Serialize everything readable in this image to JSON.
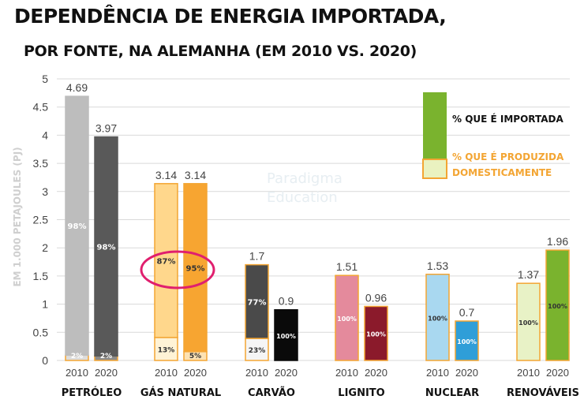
{
  "title": "DEPENDÊNCIA DE ENERGIA IMPORTADA,",
  "subtitle": "POR FONTE, NA ALEMANHA (EM 2010 VS. 2020)",
  "watermark": [
    "Paradigma",
    "Education"
  ],
  "colors": {
    "legend_imported": "#7ab32e",
    "legend_domestic": "#eaf2c0",
    "legend_domestic_border": "#f3a533",
    "legend_domestic_text": "#f3a533",
    "highlight_circle": "#e01f6e"
  },
  "legend": {
    "imported": "% QUE É IMPORTADA",
    "domestic_line1": "% QUE É PRODUZIDA",
    "domestic_line2": "DOMESTICAMENTE"
  },
  "chart_data": {
    "type": "bar",
    "stacked": true,
    "ylabel": "EM 1.000 PETAJOULES (PJ)",
    "ylim": [
      0,
      5
    ],
    "yticks": [
      "0",
      "0.5",
      "1",
      "1.5",
      "2",
      "2.5",
      "3",
      "3.5",
      "4",
      "4.5",
      "5"
    ],
    "grid": true,
    "legend_position": "top-right",
    "groups": [
      {
        "name": "PETRÓLEO",
        "bars": [
          {
            "year": "2010",
            "total": 4.69,
            "total_label": "4.69",
            "imported_label": "98%",
            "domestic_label": "2%",
            "imported_share": 0.98,
            "color": "#bdbdbd",
            "domestic_color": "#dddddd",
            "border": "#bdbdbd",
            "label_color": "#ffffff",
            "dom_label_color": "#ffffff"
          },
          {
            "year": "2020",
            "total": 3.97,
            "total_label": "3.97",
            "imported_label": "98%",
            "domestic_label": "2%",
            "imported_share": 0.98,
            "color": "#595959",
            "domestic_color": "#8c8c8c",
            "border": "#595959",
            "label_color": "#ffffff",
            "dom_label_color": "#ffffff"
          }
        ]
      },
      {
        "name": "GÁS NATURAL",
        "bars": [
          {
            "year": "2010",
            "total": 3.14,
            "total_label": "3.14",
            "imported_label": "87%",
            "domestic_label": "13%",
            "imported_share": 0.87,
            "color": "#ffd78c",
            "domestic_color": "#fff3d6",
            "border": "#f3a533",
            "label_color": "#333333",
            "dom_label_color": "#333333"
          },
          {
            "year": "2020",
            "total": 3.14,
            "total_label": "3.14",
            "imported_label": "95%",
            "domestic_label": "5%",
            "imported_share": 0.95,
            "color": "#f7a531",
            "domestic_color": "#fde2b3",
            "border": "#f3a533",
            "label_color": "#333333",
            "dom_label_color": "#333333"
          }
        ]
      },
      {
        "name": "CARVÃO",
        "bars": [
          {
            "year": "2010",
            "total": 1.7,
            "total_label": "1.7",
            "imported_label": "77%",
            "domestic_label": "23%",
            "imported_share": 0.77,
            "color": "#4a4a4a",
            "domestic_color": "#f5f5f5",
            "border": "#f3a533",
            "label_color": "#ffffff",
            "dom_label_color": "#333333"
          },
          {
            "year": "2020",
            "total": 0.9,
            "total_label": "0.9",
            "imported_label": "100%",
            "domestic_label": "",
            "imported_share": 1.0,
            "color": "#0a0a0a",
            "domestic_color": "#0a0a0a",
            "border": "#0a0a0a",
            "label_color": "#ffffff",
            "dom_label_color": "#ffffff"
          }
        ]
      },
      {
        "name": "LIGNITO",
        "bars": [
          {
            "year": "2010",
            "total": 1.51,
            "total_label": "1.51",
            "imported_label": "100%",
            "domestic_label": "",
            "imported_share": 1.0,
            "color": "#e48a9c",
            "domestic_color": "#e48a9c",
            "border": "#f3a533",
            "label_color": "#ffffff",
            "dom_label_color": "#ffffff"
          },
          {
            "year": "2020",
            "total": 0.96,
            "total_label": "0.96",
            "imported_label": "100%",
            "domestic_label": "",
            "imported_share": 1.0,
            "color": "#8b1a2b",
            "domestic_color": "#8b1a2b",
            "border": "#f3a533",
            "label_color": "#ffffff",
            "dom_label_color": "#ffffff"
          }
        ]
      },
      {
        "name": "NUCLEAR",
        "bars": [
          {
            "year": "2010",
            "total": 1.53,
            "total_label": "1.53",
            "imported_label": "100%",
            "domestic_label": "",
            "imported_share": 1.0,
            "color": "#a9d8f0",
            "domestic_color": "#a9d8f0",
            "border": "#f3a533",
            "label_color": "#333333",
            "dom_label_color": "#333333"
          },
          {
            "year": "2020",
            "total": 0.7,
            "total_label": "0.7",
            "imported_label": "100%",
            "domestic_label": "",
            "imported_share": 1.0,
            "color": "#2f9ed8",
            "domestic_color": "#2f9ed8",
            "border": "#f3a533",
            "label_color": "#ffffff",
            "dom_label_color": "#ffffff"
          }
        ]
      },
      {
        "name": "RENOVÁVEIS",
        "bars": [
          {
            "year": "2010",
            "total": 1.37,
            "total_label": "1.37",
            "imported_label": "100%",
            "domestic_label": "",
            "imported_share": 1.0,
            "color": "#e8f2c6",
            "domestic_color": "#e8f2c6",
            "border": "#f3a533",
            "label_color": "#333333",
            "dom_label_color": "#333333"
          },
          {
            "year": "2020",
            "total": 1.96,
            "total_label": "1.96",
            "imported_label": "100%",
            "domestic_label": "",
            "imported_share": 1.0,
            "color": "#7ab32e",
            "domestic_color": "#7ab32e",
            "border": "#f3a533",
            "label_color": "#333333",
            "dom_label_color": "#333333"
          }
        ]
      }
    ],
    "annotations": [
      {
        "type": "circle",
        "group": "GÁS NATURAL",
        "description": "highlight around 87% and 95%"
      }
    ]
  }
}
